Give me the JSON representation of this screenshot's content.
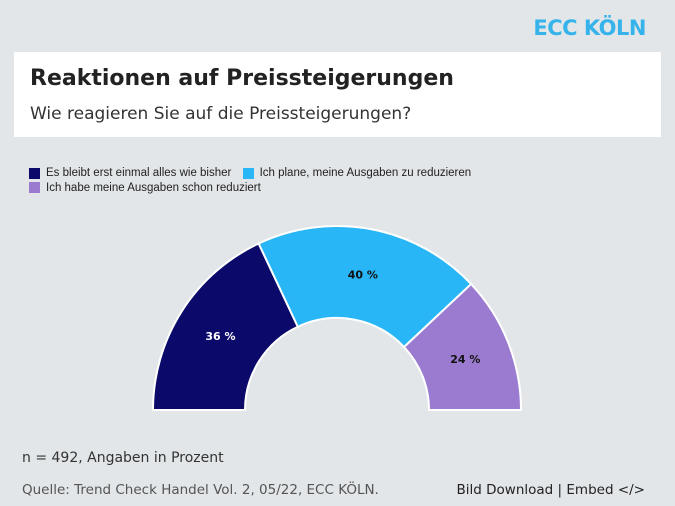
{
  "brand": "ECC KÖLN",
  "header": {
    "title": "Reaktionen auf Preissteigerungen",
    "subtitle": "Wie reagieren Sie auf die Preissteigerungen?"
  },
  "chart_data": {
    "type": "pie",
    "variant": "half-donut",
    "categories": [
      "Es bleibt erst einmal alles wie bisher",
      "Ich plane, meine Ausgaben zu reduzieren",
      "Ich habe meine Ausgaben schon reduziert"
    ],
    "values": [
      36,
      40,
      24
    ],
    "labels": [
      "36 %",
      "40 %",
      "24 %"
    ],
    "colors": [
      "#0b0a6b",
      "#29b6f6",
      "#9b7bd0"
    ],
    "legend": "top-left"
  },
  "footer": {
    "note": "n = 492, Angaben in Prozent",
    "source": "Quelle: Trend Check Handel Vol. 2, 05/22, ECC KÖLN.",
    "download": "Bild Download",
    "separator": "|",
    "embed": "Embed </>"
  }
}
